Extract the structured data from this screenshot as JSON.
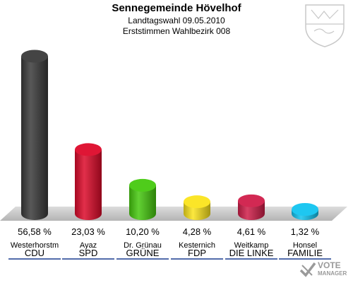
{
  "header": {
    "title": "Sennegemeinde Hövelhof",
    "subtitle": "Landtagswahl 09.05.2010",
    "subtitle2": "Erststimmen Wahlbezirk 008"
  },
  "crest_icon": "nrw-coat-of-arms-icon",
  "brand": {
    "line1": "VOTE",
    "line2": "MANAGER"
  },
  "chart_data": {
    "type": "bar",
    "title": "Sennegemeinde Hövelhof",
    "subtitle": "Landtagswahl 09.05.2010 / Erststimmen Wahlbezirk 008",
    "ylim": [
      0,
      60
    ],
    "grid": false,
    "legend": "none",
    "categories": [
      "CDU",
      "SPD",
      "GRÜNE",
      "FDP",
      "DIE LINKE",
      "FAMILIE"
    ],
    "candidates": [
      "Westerhorstm",
      "Ayaz",
      "Dr. Grünau",
      "Kesternich",
      "Weitkamp",
      "Honsel"
    ],
    "values": [
      56.58,
      23.03,
      10.2,
      4.28,
      4.61,
      1.32
    ],
    "value_labels": [
      "56,58 %",
      "23,03 %",
      "10,20 %",
      "4,28 %",
      "4,61 %",
      "1,32 %"
    ],
    "colors": [
      "#3a3a3a",
      "#dd0a2a",
      "#46c90f",
      "#fbe41d",
      "#d01e4a",
      "#12c4f0"
    ]
  }
}
